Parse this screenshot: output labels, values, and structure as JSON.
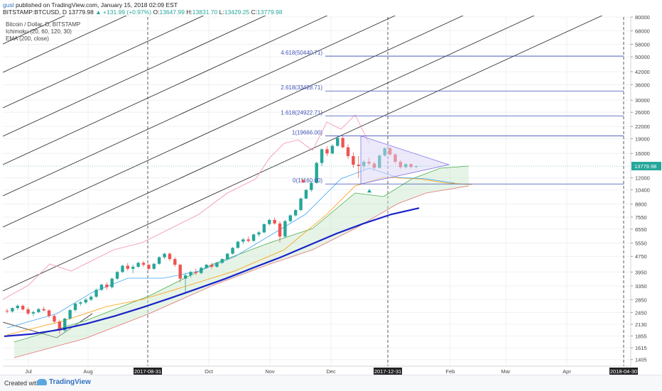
{
  "header": {
    "user": "gusl",
    "published": "published on TradingView.com, January 15, 2018 02:09 EST",
    "symbol": "BITSTAMP:BTCUSD, D",
    "last": "13779.98",
    "change": "+131.99 (+0.97%)",
    "open_label": "O:",
    "open": "13647.99",
    "high_label": "H:",
    "high": "13831.70",
    "low_label": "L:",
    "low": "13429.25",
    "close_label": "C:",
    "close": "13779.98"
  },
  "legend": {
    "title": "Bitcoin / Dollar, D, BITSTAMP",
    "ichimoku": "Ichimoku (20, 60, 120, 30)",
    "ema": "EMA (200, close)"
  },
  "footer": {
    "created": "Created with",
    "brand": "TradingView"
  },
  "chart_data": {
    "type": "candlestick",
    "y_scale": "log",
    "ylim": [
      1300,
      80000
    ],
    "price_ticks": [
      80000,
      68000,
      58000,
      50000,
      42000,
      36000,
      30000,
      26000,
      22000,
      19000,
      16000,
      13779.98,
      12000,
      10400,
      8800,
      7550,
      6550,
      5550,
      4750,
      3950,
      3350,
      2850,
      2450,
      2130,
      1855,
      1615,
      1405
    ],
    "time_labels": [
      "Jul",
      "Aug",
      "2017-08-31",
      "Oct",
      "Nov",
      "Dec",
      "2017-12-31",
      "Feb",
      "Mar",
      "Apr",
      "2018-04-30"
    ],
    "highlighted_time_labels": [
      "2017-08-31",
      "2017-12-31",
      "2018-04-30"
    ],
    "last_price_label": "13779.98",
    "fib_levels": [
      {
        "label": "4.618(50440.71)",
        "price": 50440.71
      },
      {
        "label": "2.618(33428.71)",
        "price": 33428.71
      },
      {
        "label": "1.618(24922.71)",
        "price": 24922.71
      },
      {
        "label": "1(19666.00)",
        "price": 19666.0
      },
      {
        "label": "0(11160.00)",
        "price": 11160.0
      }
    ],
    "ohlc_series": [
      [
        2500,
        2560,
        2420,
        2480
      ],
      [
        2480,
        2600,
        2440,
        2580
      ],
      [
        2580,
        2700,
        2520,
        2650
      ],
      [
        2650,
        2690,
        2500,
        2540
      ],
      [
        2540,
        2600,
        2380,
        2420
      ],
      [
        2420,
        2500,
        2350,
        2460
      ],
      [
        2460,
        2580,
        2430,
        2550
      ],
      [
        2550,
        2620,
        2480,
        2510
      ],
      [
        2510,
        2540,
        2300,
        2350
      ],
      [
        2350,
        2400,
        2150,
        2200
      ],
      [
        2200,
        2250,
        1900,
        1980
      ],
      [
        1980,
        2300,
        1950,
        2280
      ],
      [
        2280,
        2550,
        2250,
        2520
      ],
      [
        2520,
        2750,
        2480,
        2720
      ],
      [
        2720,
        2800,
        2650,
        2760
      ],
      [
        2760,
        2900,
        2700,
        2850
      ],
      [
        2850,
        3000,
        2800,
        2950
      ],
      [
        2950,
        3250,
        2900,
        3200
      ],
      [
        3200,
        3450,
        3150,
        3400
      ],
      [
        3400,
        3500,
        3200,
        3300
      ],
      [
        3300,
        3700,
        3250,
        3650
      ],
      [
        3650,
        4000,
        3600,
        3950
      ],
      [
        3950,
        4300,
        3900,
        4250
      ],
      [
        4250,
        4400,
        4000,
        4100
      ],
      [
        4100,
        4300,
        3900,
        4200
      ],
      [
        4200,
        4450,
        4150,
        4400
      ],
      [
        4400,
        4500,
        4200,
        4300
      ],
      [
        4300,
        4350,
        4050,
        4100
      ],
      [
        4100,
        4400,
        4050,
        4350
      ],
      [
        4350,
        4750,
        4300,
        4700
      ],
      [
        4700,
        4950,
        4600,
        4900
      ],
      [
        4900,
        4980,
        4500,
        4600
      ],
      [
        4600,
        4700,
        4200,
        4300
      ],
      [
        4300,
        4350,
        3500,
        3650
      ],
      [
        3650,
        3900,
        3100,
        3800
      ],
      [
        3800,
        4000,
        3700,
        3950
      ],
      [
        3950,
        4100,
        3800,
        3900
      ],
      [
        3900,
        4200,
        3850,
        4150
      ],
      [
        4150,
        4350,
        4100,
        4300
      ],
      [
        4300,
        4400,
        4100,
        4200
      ],
      [
        4200,
        4450,
        4150,
        4400
      ],
      [
        4400,
        4650,
        4350,
        4600
      ],
      [
        4600,
        4950,
        4550,
        4900
      ],
      [
        4900,
        5300,
        4850,
        5250
      ],
      [
        5250,
        5700,
        5200,
        5650
      ],
      [
        5650,
        5900,
        5500,
        5800
      ],
      [
        5800,
        6000,
        5600,
        5700
      ],
      [
        5700,
        6200,
        5650,
        6150
      ],
      [
        6150,
        6400,
        6000,
        6300
      ],
      [
        6300,
        7000,
        6250,
        6950
      ],
      [
        6950,
        7400,
        6850,
        7300
      ],
      [
        7300,
        7500,
        6900,
        7000
      ],
      [
        7000,
        7200,
        5600,
        6000
      ],
      [
        6000,
        7300,
        5900,
        7200
      ],
      [
        7200,
        7800,
        7100,
        7700
      ],
      [
        7700,
        8300,
        7600,
        8200
      ],
      [
        8200,
        9500,
        8100,
        9400
      ],
      [
        9400,
        10500,
        9300,
        10400
      ],
      [
        10400,
        11500,
        10200,
        11300
      ],
      [
        11300,
        14500,
        11200,
        14300
      ],
      [
        14300,
        17000,
        13800,
        16800
      ],
      [
        16800,
        17400,
        15500,
        16000
      ],
      [
        16000,
        17800,
        15800,
        17500
      ],
      [
        17500,
        19666,
        17300,
        19200
      ],
      [
        19200,
        19500,
        17000,
        17200
      ],
      [
        17200,
        17800,
        15000,
        15500
      ],
      [
        15500,
        16200,
        13500,
        14000
      ],
      [
        14000,
        15500,
        12000,
        13800
      ],
      [
        13800,
        14800,
        13200,
        14500
      ],
      [
        14500,
        15200,
        13900,
        14200
      ],
      [
        14200,
        14500,
        13100,
        13500
      ],
      [
        13500,
        15800,
        13400,
        15600
      ],
      [
        15600,
        17200,
        15400,
        17000
      ],
      [
        17000,
        17300,
        15500,
        15800
      ],
      [
        15800,
        16000,
        14200,
        14500
      ],
      [
        14500,
        14800,
        13300,
        13600
      ],
      [
        13600,
        14300,
        13400,
        14100
      ],
      [
        14100,
        14200,
        13400,
        13648
      ],
      [
        13648,
        13832,
        13429,
        13780
      ]
    ],
    "ema_200": [
      1850,
      1900,
      2000,
      2150,
      2350,
      2600,
      2900,
      3250,
      3650,
      4150,
      4700,
      5400,
      6200,
      7000,
      7800,
      8400
    ],
    "triangle": {
      "apex_price": 14000,
      "upper_start": 19666,
      "lower_start": 11160
    }
  }
}
